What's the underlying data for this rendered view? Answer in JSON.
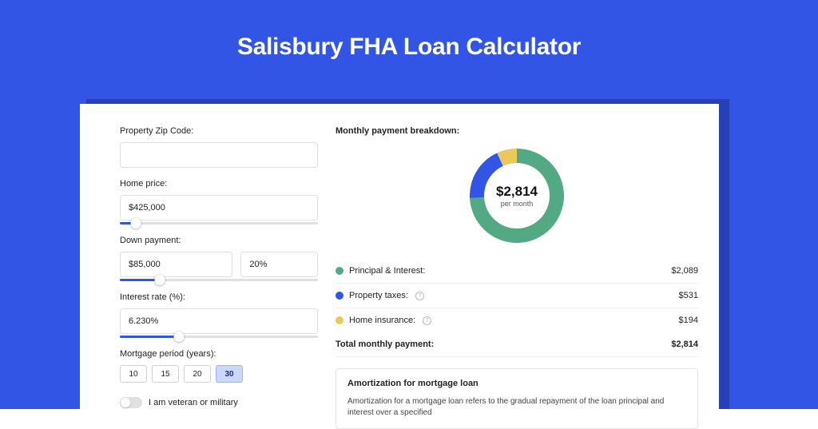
{
  "colors": {
    "page_bg": "#3355e6",
    "card_shadow": "#2641b8",
    "card_bg": "#ffffff",
    "text": "#222222",
    "border": "#e0e0e0",
    "slider_fill": "#3355e6",
    "period_active_bg": "#cdd8f8",
    "period_active_border": "#9fb2ee"
  },
  "title": "Salisbury FHA Loan Calculator",
  "form": {
    "zip": {
      "label": "Property Zip Code:",
      "value": ""
    },
    "home_price": {
      "label": "Home price:",
      "value": "$425,000",
      "slider_pct": 8
    },
    "down_payment": {
      "label": "Down payment:",
      "value": "$85,000",
      "pct_value": "20%",
      "slider_pct": 20
    },
    "interest_rate": {
      "label": "Interest rate (%):",
      "value": "6.230%",
      "slider_pct": 30
    },
    "period": {
      "label": "Mortgage period (years):",
      "options": [
        "10",
        "15",
        "20",
        "30"
      ],
      "selected": "30"
    },
    "veteran": {
      "label": "I am veteran or military",
      "on": false
    }
  },
  "breakdown": {
    "title": "Monthly payment breakdown:",
    "donut": {
      "amount": "$2,814",
      "sub": "per month",
      "slices": [
        {
          "pct": 74.2,
          "color": "#53a983"
        },
        {
          "pct": 18.9,
          "color": "#3355e6"
        },
        {
          "pct": 6.9,
          "color": "#e8c95a"
        }
      ],
      "ring_width": 18
    },
    "items": [
      {
        "label": "Principal & Interest:",
        "value": "$2,089",
        "color": "#53a983",
        "info": false
      },
      {
        "label": "Property taxes:",
        "value": "$531",
        "color": "#3355e6",
        "info": true
      },
      {
        "label": "Home insurance:",
        "value": "$194",
        "color": "#e8c95a",
        "info": true
      }
    ],
    "total": {
      "label": "Total monthly payment:",
      "value": "$2,814"
    }
  },
  "amort": {
    "title": "Amortization for mortgage loan",
    "text": "Amortization for a mortgage loan refers to the gradual repayment of the loan principal and interest over a specified"
  }
}
